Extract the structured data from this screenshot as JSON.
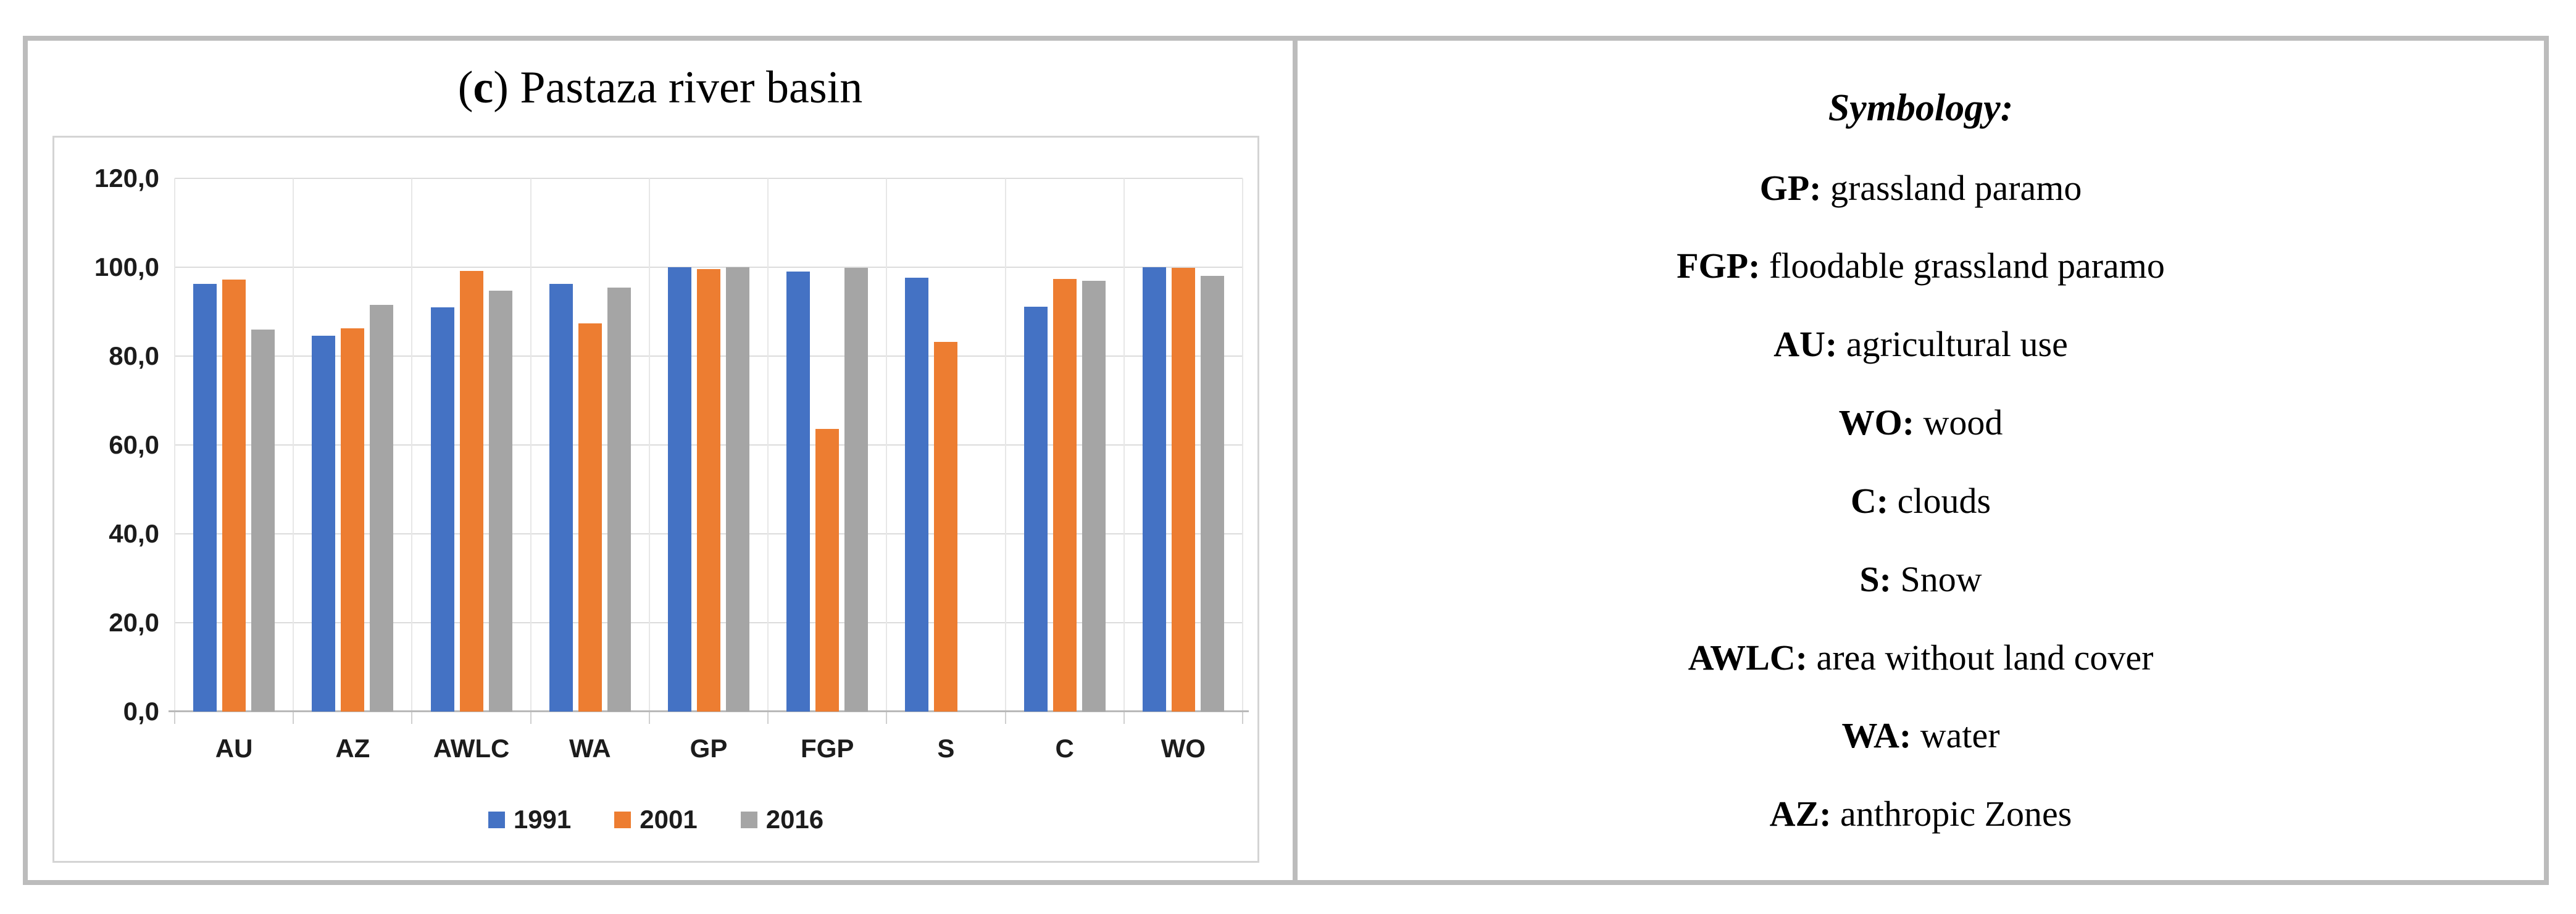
{
  "title": {
    "prefix": "(",
    "marker": "c",
    "suffix": ") Pastaza river basin"
  },
  "chart_data": {
    "type": "bar",
    "title": "(c) Pastaza river basin",
    "categories": [
      "AU",
      "AZ",
      "AWLC",
      "WA",
      "GP",
      "FGP",
      "S",
      "C",
      "WO"
    ],
    "series": [
      {
        "name": "1991",
        "color": "#4472C4",
        "values": [
          96.2,
          84.6,
          91.0,
          96.2,
          100.0,
          99.0,
          97.7,
          91.1,
          100.0
        ]
      },
      {
        "name": "2001",
        "color": "#ED7D31",
        "values": [
          97.2,
          86.2,
          99.2,
          87.4,
          99.6,
          63.6,
          83.2,
          97.4,
          99.8
        ]
      },
      {
        "name": "2016",
        "color": "#A5A5A5",
        "values": [
          86.0,
          91.5,
          94.7,
          95.4,
          100.0,
          99.9,
          0.0,
          96.9,
          98.0
        ]
      }
    ],
    "ylim": [
      0,
      120
    ],
    "ytick_step": 20,
    "ytick_labels": [
      "0,0",
      "20,0",
      "40,0",
      "60,0",
      "80,0",
      "100,0",
      "120,0"
    ],
    "grid": true,
    "legend_position": "bottom"
  },
  "symbology": {
    "heading": "Symbology:",
    "entries": [
      {
        "key": "GP:",
        "label": "grassland paramo"
      },
      {
        "key": "FGP:",
        "label": "floodable grassland paramo"
      },
      {
        "key": "AU:",
        "label": "agricultural use"
      },
      {
        "key": "WO:",
        "label": "wood"
      },
      {
        "key": "C:",
        "label": "clouds"
      },
      {
        "key": "S:",
        "label": "Snow"
      },
      {
        "key": "AWLC:",
        "label": "area without land cover"
      },
      {
        "key": "WA:",
        "label": "water"
      },
      {
        "key": "AZ:",
        "label": "anthropic Zones"
      }
    ]
  }
}
